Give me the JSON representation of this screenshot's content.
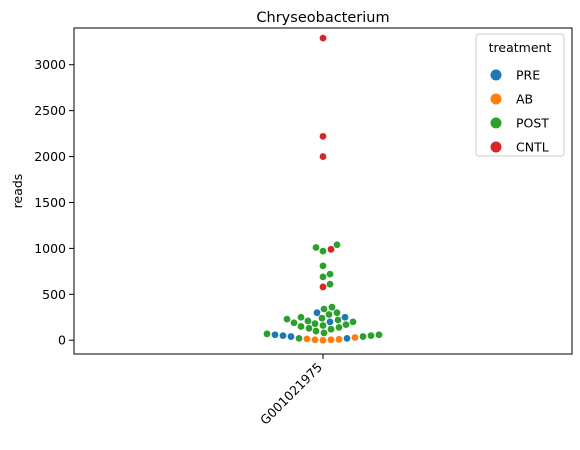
{
  "chart_data": {
    "type": "scatter",
    "subtype": "swarm",
    "title": "Chryseobacterium",
    "xlabel": "",
    "ylabel": "reads",
    "categories": [
      "G001021975"
    ],
    "ylim": [
      -150,
      3400
    ],
    "yticks": [
      0,
      500,
      1000,
      1500,
      2000,
      2500,
      3000
    ],
    "grid": false,
    "legend": {
      "title": "treatment",
      "placement": "top-right",
      "entries": [
        {
          "name": "PRE",
          "color": "#1f77b4"
        },
        {
          "name": "AB",
          "color": "#ff7f0e"
        },
        {
          "name": "POST",
          "color": "#2ca02c"
        },
        {
          "name": "CNTL",
          "color": "#d62728"
        }
      ]
    },
    "series": [
      {
        "name": "PRE",
        "color": "#1f77b4",
        "values": [
          60,
          40,
          20,
          200,
          250,
          300,
          50
        ]
      },
      {
        "name": "AB",
        "color": "#ff7f0e",
        "values": [
          10,
          5,
          0,
          5,
          15,
          30
        ]
      },
      {
        "name": "POST",
        "color": "#2ca02c",
        "values": [
          1040,
          1010,
          970,
          810,
          720,
          690,
          610,
          360,
          340,
          300,
          280,
          250,
          240,
          230,
          220,
          210,
          200,
          190,
          180,
          170,
          160,
          150,
          140,
          130,
          120,
          100,
          80,
          70,
          60,
          50,
          40,
          20
        ]
      },
      {
        "name": "CNTL",
        "color": "#d62728",
        "values": [
          3290,
          2220,
          2000,
          990,
          580
        ]
      }
    ]
  }
}
